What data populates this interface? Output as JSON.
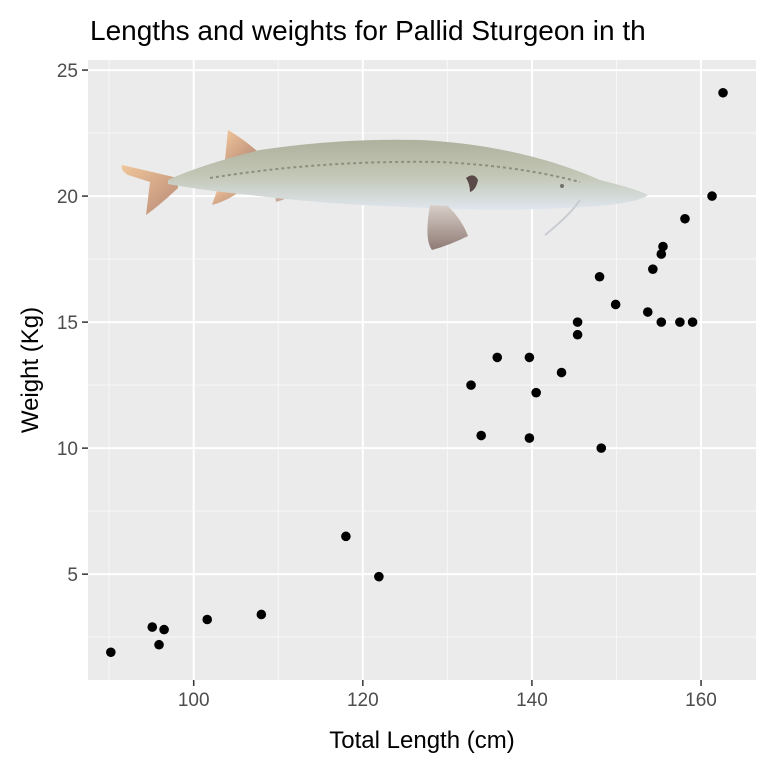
{
  "chart_data": {
    "type": "scatter",
    "title": "Lengths and weights for Pallid Sturgeon in th",
    "xlabel": "Total Length (cm)",
    "ylabel": "Weight (Kg)",
    "xlim": [
      87.5,
      166.5
    ],
    "ylim": [
      0.8,
      25.4
    ],
    "xticks": [
      100,
      120,
      140,
      160
    ],
    "yticks": [
      5,
      10,
      15,
      20,
      25
    ],
    "xtick_labels": [
      "100",
      "120",
      "140",
      "160"
    ],
    "ytick_labels": [
      "5",
      "10",
      "15",
      "20",
      "25"
    ],
    "grid": true,
    "background": "#ebebeb",
    "point_color": "#000000",
    "decoration": "sturgeon-illustration",
    "points": [
      {
        "x": 90.2,
        "y": 1.9
      },
      {
        "x": 95.1,
        "y": 2.9
      },
      {
        "x": 95.9,
        "y": 2.2
      },
      {
        "x": 96.5,
        "y": 2.8
      },
      {
        "x": 101.6,
        "y": 3.2
      },
      {
        "x": 108.0,
        "y": 3.4
      },
      {
        "x": 118.0,
        "y": 6.5
      },
      {
        "x": 121.9,
        "y": 4.9
      },
      {
        "x": 132.8,
        "y": 12.5
      },
      {
        "x": 134.0,
        "y": 10.5
      },
      {
        "x": 135.9,
        "y": 13.6
      },
      {
        "x": 139.7,
        "y": 13.6
      },
      {
        "x": 139.7,
        "y": 10.4
      },
      {
        "x": 140.5,
        "y": 12.2
      },
      {
        "x": 143.5,
        "y": 13.0
      },
      {
        "x": 145.4,
        "y": 15.0
      },
      {
        "x": 145.4,
        "y": 14.5
      },
      {
        "x": 148.0,
        "y": 16.8
      },
      {
        "x": 148.2,
        "y": 10.0
      },
      {
        "x": 149.9,
        "y": 15.7
      },
      {
        "x": 153.7,
        "y": 15.4
      },
      {
        "x": 154.3,
        "y": 17.1
      },
      {
        "x": 155.3,
        "y": 17.7
      },
      {
        "x": 155.5,
        "y": 18.0
      },
      {
        "x": 155.3,
        "y": 15.0
      },
      {
        "x": 157.5,
        "y": 15.0
      },
      {
        "x": 158.1,
        "y": 19.1
      },
      {
        "x": 159.0,
        "y": 15.0
      },
      {
        "x": 161.3,
        "y": 20.0
      },
      {
        "x": 162.6,
        "y": 24.1
      }
    ]
  }
}
